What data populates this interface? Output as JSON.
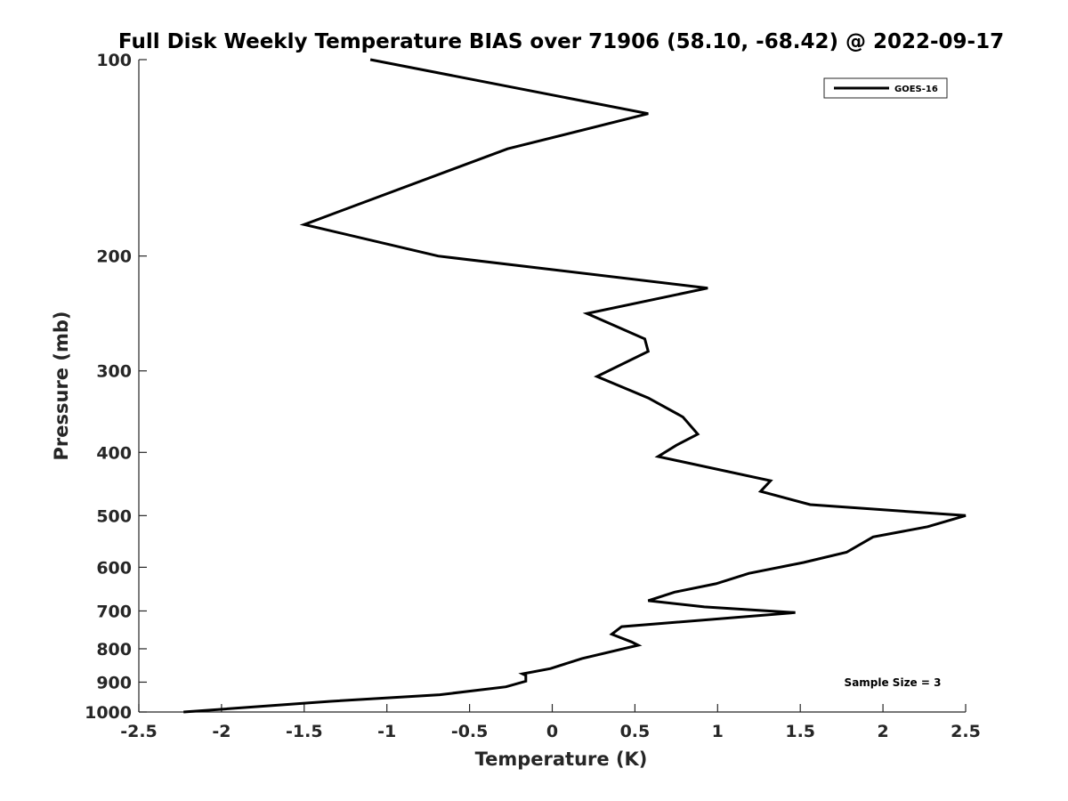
{
  "chart_data": {
    "type": "line",
    "title": "Full Disk Weekly Temperature BIAS over 71906 (58.10, -68.42) @ 2022-09-17",
    "xlabel": "Temperature (K)",
    "ylabel": "Pressure (mb)",
    "xlim": [
      -2.5,
      2.5
    ],
    "ylim": [
      100,
      1000
    ],
    "y_scale": "log",
    "y_reversed": true,
    "xticks": [
      -2.5,
      -2,
      -1.5,
      -1,
      -0.5,
      0,
      0.5,
      1,
      1.5,
      2,
      2.5
    ],
    "xtick_labels": [
      "-2.5",
      "-2",
      "-1.5",
      "-1",
      "-0.5",
      "0",
      "0.5",
      "1",
      "1.5",
      "2",
      "2.5"
    ],
    "yticks": [
      100,
      200,
      300,
      400,
      500,
      600,
      700,
      800,
      900,
      1000
    ],
    "ytick_labels": [
      "100",
      "200",
      "300",
      "400",
      "500",
      "600",
      "700",
      "800",
      "900",
      "1000"
    ],
    "grid": false,
    "legend_position": "top-right",
    "series": [
      {
        "name": "GOES-16",
        "color": "#000000",
        "x": [
          -1.1,
          0.58,
          -0.27,
          -1.5,
          -0.69,
          0.94,
          0.21,
          0.56,
          0.58,
          0.27,
          0.58,
          0.79,
          0.88,
          0.75,
          0.64,
          1.32,
          1.26,
          1.56,
          2.5,
          2.27,
          1.94,
          1.78,
          1.52,
          1.19,
          0.99,
          0.74,
          0.58,
          0.92,
          1.47,
          0.42,
          0.36,
          0.48,
          0.52,
          0.18,
          -0.01,
          -0.18,
          -0.16,
          -0.16,
          -0.28,
          -0.68,
          -1.34,
          -2.23
        ],
        "y": [
          100,
          121,
          137,
          179,
          200,
          224,
          245,
          268,
          280,
          306,
          330,
          353,
          375,
          390,
          406,
          442,
          459,
          481,
          500,
          520,
          539,
          569,
          590,
          613,
          636,
          655,
          675,
          690,
          704,
          740,
          760,
          781,
          790,
          828,
          858,
          874,
          879,
          897,
          915,
          941,
          963,
          1000
        ]
      }
    ],
    "annotation": "Sample Size = 3"
  }
}
